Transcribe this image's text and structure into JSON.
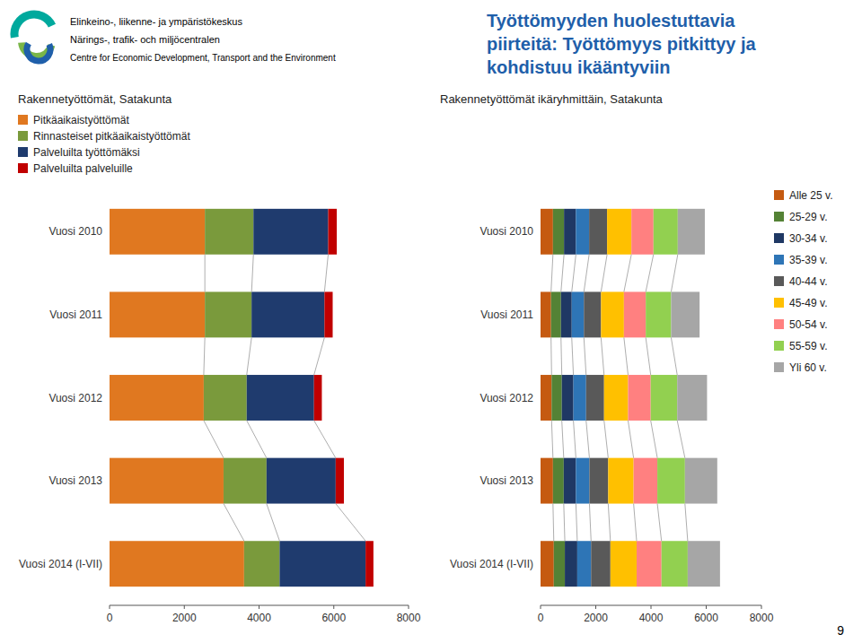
{
  "page": {
    "title": "Työttömyyden huolestuttavia\npiirteitä: Työttömyys pitkittyy ja\nkohdistuu ikääntyviin",
    "header": [
      "Elinkeino-, liikenne- ja ympäristökeskus",
      "Närings-, trafik- och miljöcentralen",
      "Centre for Economic Development, Transport and the Environment"
    ],
    "page_number": "9"
  },
  "chart_data": [
    {
      "type": "bar",
      "orientation": "horizontal",
      "stacked": true,
      "title": "Rakennetyöttömät, Satakunta",
      "categories": [
        "Vuosi 2010",
        "Vuosi 2011",
        "Vuosi 2012",
        "Vuosi 2013",
        "Vuosi 2014 (I-VII)"
      ],
      "series": [
        {
          "name": "Pitkäaikaistyöttömät",
          "color": "#E07820",
          "values": [
            2550,
            2550,
            2520,
            3050,
            3600
          ]
        },
        {
          "name": "Rinnasteiset pitkäaikaistyöttömät",
          "color": "#7A9A3C",
          "values": [
            1300,
            1250,
            1150,
            1150,
            950
          ]
        },
        {
          "name": "Palveluilta työttömäksi",
          "color": "#1F3B6E",
          "values": [
            2000,
            1950,
            1800,
            1850,
            2300
          ]
        },
        {
          "name": "Palveluilta palveluille",
          "color": "#C00000",
          "values": [
            230,
            220,
            210,
            220,
            210
          ]
        }
      ],
      "xlim": [
        0,
        8000
      ],
      "xticks": [
        0,
        2000,
        4000,
        6000,
        8000
      ],
      "grid": false,
      "legend": "top"
    },
    {
      "type": "bar",
      "orientation": "horizontal",
      "stacked": true,
      "title": "Rakennetyöttömät ikäryhmittäin, Satakunta",
      "categories": [
        "Vuosi 2010",
        "Vuosi 2011",
        "Vuosi 2012",
        "Vuosi 2013",
        "Vuosi 2014 (I-VII)"
      ],
      "series": [
        {
          "name": "Alle 25 v.",
          "color": "#C55A11",
          "values": [
            450,
            380,
            400,
            450,
            480
          ]
        },
        {
          "name": "25-29 v.",
          "color": "#548235",
          "values": [
            400,
            360,
            370,
            390,
            400
          ]
        },
        {
          "name": "30-34 v.",
          "color": "#1F3864",
          "values": [
            430,
            390,
            420,
            440,
            450
          ]
        },
        {
          "name": "35-39 v.",
          "color": "#2E75B6",
          "values": [
            480,
            440,
            460,
            490,
            500
          ]
        },
        {
          "name": "40-44 v.",
          "color": "#595959",
          "values": [
            650,
            620,
            650,
            680,
            700
          ]
        },
        {
          "name": "45-49 v.",
          "color": "#FFC000",
          "values": [
            880,
            830,
            870,
            920,
            950
          ]
        },
        {
          "name": "50-54 v.",
          "color": "#FF8080",
          "values": [
            800,
            790,
            820,
            860,
            900
          ]
        },
        {
          "name": "55-59 v.",
          "color": "#92D050",
          "values": [
            880,
            920,
            960,
            1000,
            950
          ]
        },
        {
          "name": "Yli 60 v.",
          "color": "#A6A6A6",
          "values": [
            980,
            1030,
            1080,
            1170,
            1170
          ]
        }
      ],
      "xlim": [
        0,
        8000
      ],
      "xticks": [
        0,
        2000,
        4000,
        6000,
        8000
      ],
      "grid": false,
      "legend": "right"
    }
  ]
}
